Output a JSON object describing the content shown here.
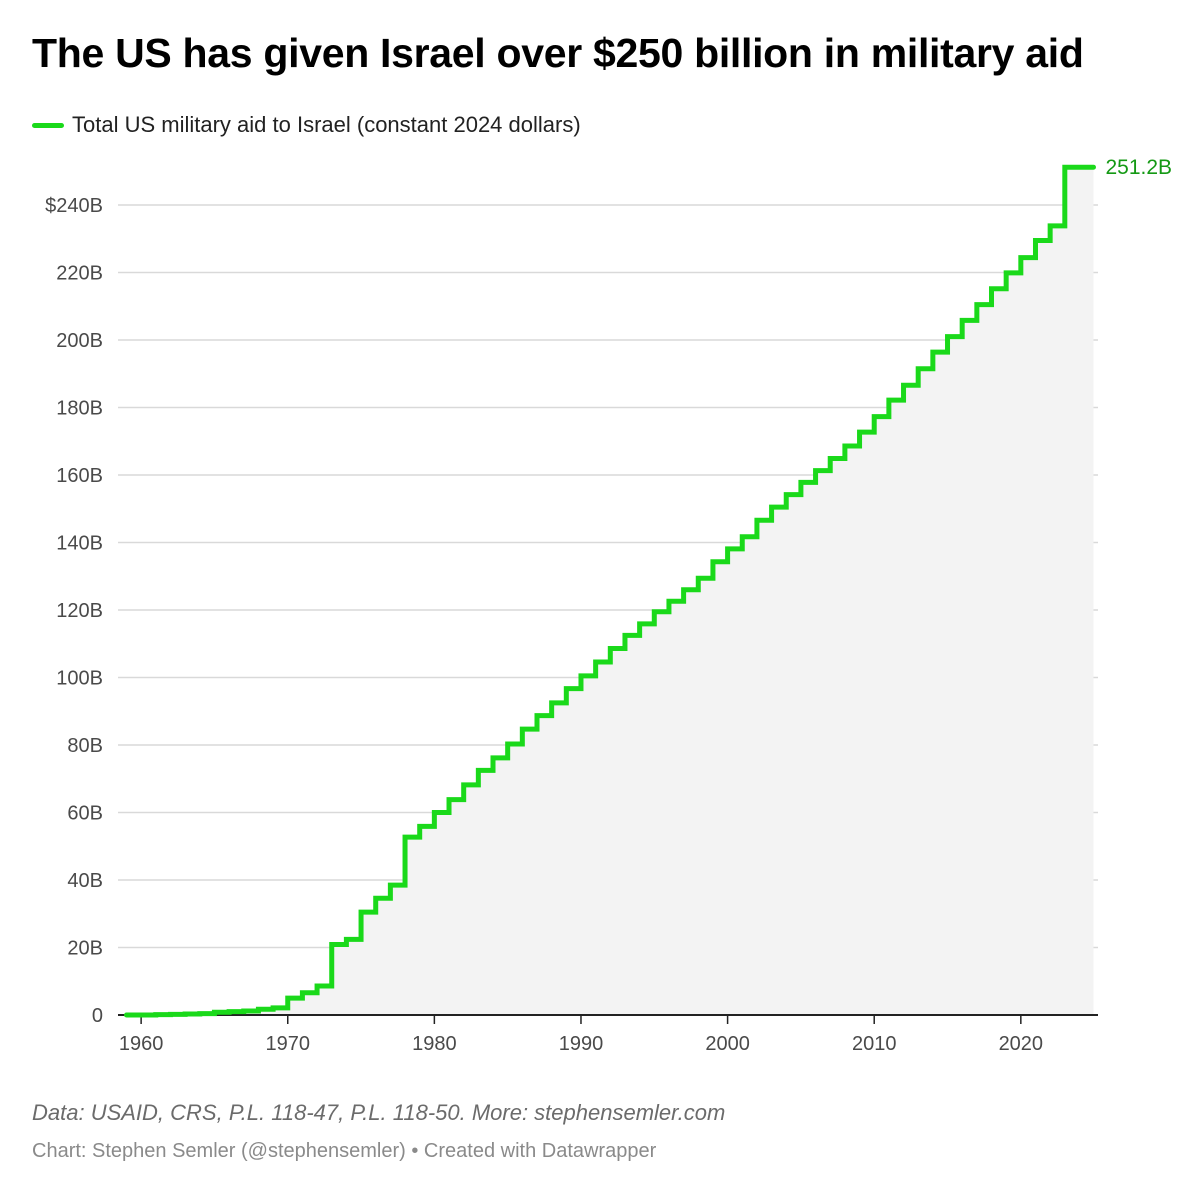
{
  "title": "The US has given Israel over $250 billion in military aid",
  "footer": {
    "notes": "Data: USAID, CRS, P.L. 118-47, P.L. 118-50. More: stephensemler.com",
    "byline": "Chart: Stephen Semler (@stephensemler) • Created with Datawrapper"
  },
  "colors": {
    "line": "#1ad91a",
    "label": "#149914",
    "area": "#f3f3f3",
    "grid": "#d9d9d9",
    "axis": "#222222"
  },
  "chart_data": {
    "type": "line",
    "step": true,
    "area_fill": true,
    "title": "The US has given Israel over $250 billion in military aid",
    "xlabel": "",
    "ylabel": "",
    "xlim": [
      1958.9,
      1925.0
    ],
    "xlim_note": "",
    "ylim": [
      0,
      250
    ],
    "grid": true,
    "legend_position": "top-left",
    "x_ticks": [
      1960,
      1970,
      1980,
      1990,
      2000,
      2010,
      2020
    ],
    "x_tick_labels": [
      "1960",
      "1970",
      "1980",
      "1990",
      "2000",
      "2010",
      "2020"
    ],
    "y_ticks": [
      0,
      20,
      40,
      60,
      80,
      100,
      120,
      140,
      160,
      180,
      200,
      220,
      240
    ],
    "y_tick_labels": [
      "0",
      "20B",
      "40B",
      "60B",
      "80B",
      "100B",
      "120B",
      "140B",
      "160B",
      "180B",
      "200B",
      "220B",
      "240B"
    ],
    "y_top_tick_label": "$240B",
    "end_label": "251.2B",
    "series": [
      {
        "name": "Total US military aid to Israel (constant 2024 dollars)",
        "x": [
          1959,
          1960,
          1961,
          1962,
          1963,
          1964,
          1965,
          1966,
          1967,
          1968,
          1969,
          1970,
          1971,
          1972,
          1973,
          1974,
          1975,
          1976,
          1977,
          1978,
          1979,
          1980,
          1981,
          1982,
          1983,
          1984,
          1985,
          1986,
          1987,
          1988,
          1989,
          1990,
          1991,
          1992,
          1993,
          1994,
          1995,
          1996,
          1997,
          1998,
          1999,
          2000,
          2001,
          2002,
          2003,
          2004,
          2005,
          2006,
          2007,
          2008,
          2009,
          2010,
          2011,
          2012,
          2013,
          2014,
          2015,
          2016,
          2017,
          2018,
          2019,
          2020,
          2021,
          2022,
          2023,
          2024
        ],
        "y": [
          0,
          0,
          0.1,
          0.2,
          0.3,
          0.4,
          0.8,
          1.0,
          1.2,
          1.7,
          2.1,
          5.0,
          6.6,
          8.6,
          20.9,
          22.4,
          30.5,
          34.6,
          38.5,
          52.7,
          55.9,
          60.0,
          63.8,
          68.2,
          72.5,
          76.2,
          80.3,
          84.7,
          88.7,
          92.5,
          96.7,
          100.5,
          104.6,
          108.6,
          112.5,
          115.9,
          119.5,
          122.6,
          126.0,
          129.4,
          134.3,
          138.1,
          141.7,
          146.6,
          150.5,
          154.2,
          157.8,
          161.3,
          164.9,
          168.6,
          172.7,
          177.3,
          182.2,
          186.6,
          191.5,
          196.4,
          201.0,
          205.8,
          210.5,
          215.2,
          219.9,
          224.4,
          229.5,
          233.8,
          251.2,
          251.2
        ]
      }
    ]
  }
}
